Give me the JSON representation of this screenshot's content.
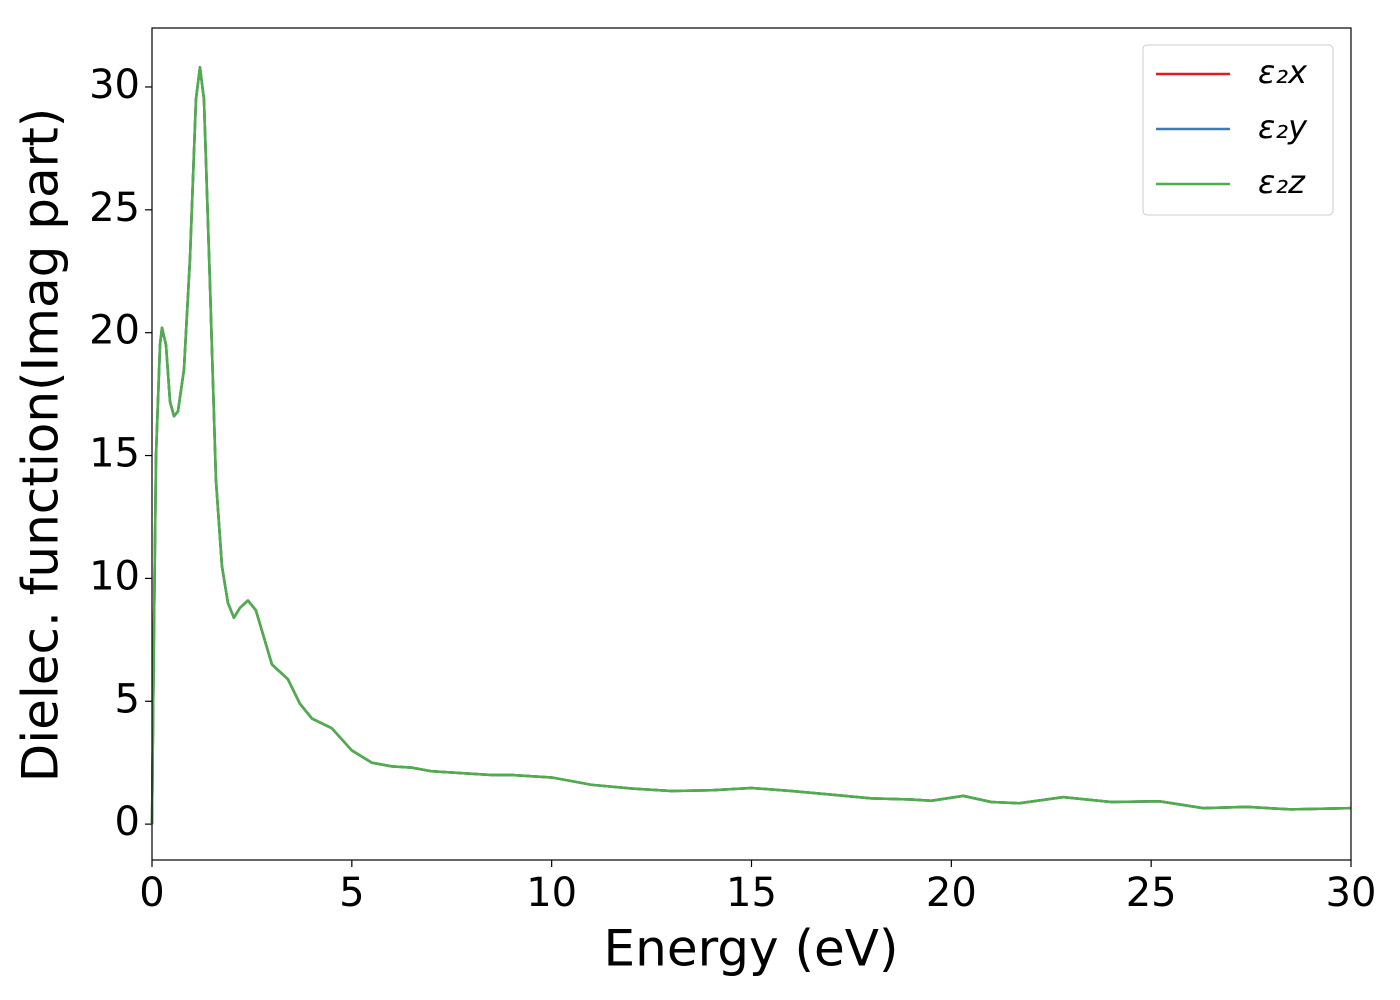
{
  "chart_data": {
    "type": "line",
    "xlabel": "Energy (eV)",
    "ylabel": "Dielec. function(Imag part)",
    "x": [
      0,
      0.05,
      0.1,
      0.2,
      0.25,
      0.35,
      0.45,
      0.55,
      0.65,
      0.8,
      0.95,
      1.1,
      1.2,
      1.3,
      1.45,
      1.6,
      1.75,
      1.9,
      2.05,
      2.2,
      2.4,
      2.6,
      2.8,
      3.0,
      3.2,
      3.4,
      3.7,
      4.0,
      4.5,
      5.0,
      5.5,
      6.0,
      6.5,
      7,
      8,
      8.5,
      9,
      10,
      11,
      12,
      13,
      14,
      15,
      16,
      17,
      18,
      19,
      19.5,
      20.3,
      21,
      21.7,
      22.8,
      24,
      25.2,
      26.3,
      27.4,
      28.5,
      30
    ],
    "series": [
      {
        "name": "ε₂x",
        "color": "#e41a1c",
        "values": [
          0,
          8,
          15,
          19.5,
          20.2,
          19.5,
          17.2,
          16.6,
          16.8,
          18.5,
          23,
          29.5,
          30.8,
          29.5,
          22,
          14,
          10.5,
          9,
          8.4,
          8.8,
          9.1,
          8.7,
          7.6,
          6.5,
          6.2,
          5.9,
          4.9,
          4.3,
          3.9,
          3.0,
          2.5,
          2.35,
          2.3,
          2.15,
          2.05,
          2.0,
          2.0,
          1.9,
          1.6,
          1.45,
          1.35,
          1.38,
          1.47,
          1.35,
          1.2,
          1.05,
          1.0,
          0.95,
          1.15,
          0.9,
          0.85,
          1.1,
          0.9,
          0.93,
          0.65,
          0.7,
          0.6,
          0.65
        ]
      },
      {
        "name": "ε₂y",
        "color": "#377eb8",
        "values": [
          0,
          8,
          15,
          19.5,
          20.2,
          19.5,
          17.2,
          16.6,
          16.8,
          18.5,
          23,
          29.5,
          30.8,
          29.5,
          22,
          14,
          10.5,
          9,
          8.4,
          8.8,
          9.1,
          8.7,
          7.6,
          6.5,
          6.2,
          5.9,
          4.9,
          4.3,
          3.9,
          3.0,
          2.5,
          2.35,
          2.3,
          2.15,
          2.05,
          2.0,
          2.0,
          1.9,
          1.6,
          1.45,
          1.35,
          1.38,
          1.47,
          1.35,
          1.2,
          1.05,
          1.0,
          0.95,
          1.15,
          0.9,
          0.85,
          1.1,
          0.9,
          0.93,
          0.65,
          0.7,
          0.6,
          0.65
        ]
      },
      {
        "name": "ε₂z",
        "color": "#4daf4a",
        "values": [
          0,
          8,
          15,
          19.5,
          20.2,
          19.5,
          17.2,
          16.6,
          16.8,
          18.5,
          23,
          29.5,
          30.8,
          29.5,
          22,
          14,
          10.5,
          9,
          8.4,
          8.8,
          9.1,
          8.7,
          7.6,
          6.5,
          6.2,
          5.9,
          4.9,
          4.3,
          3.9,
          3.0,
          2.5,
          2.35,
          2.3,
          2.15,
          2.05,
          2.0,
          2.0,
          1.9,
          1.6,
          1.45,
          1.35,
          1.38,
          1.47,
          1.35,
          1.2,
          1.05,
          1.0,
          0.95,
          1.15,
          0.9,
          0.85,
          1.1,
          0.9,
          0.93,
          0.65,
          0.7,
          0.6,
          0.65
        ]
      }
    ],
    "xlim": [
      0,
      30
    ],
    "xticks": [
      0,
      5,
      10,
      15,
      20,
      25,
      30
    ],
    "ylim": [
      -1.46,
      32.4
    ],
    "yticks": [
      0,
      5,
      10,
      15,
      20,
      25,
      30
    ],
    "legend": "upper right",
    "grid": false
  }
}
